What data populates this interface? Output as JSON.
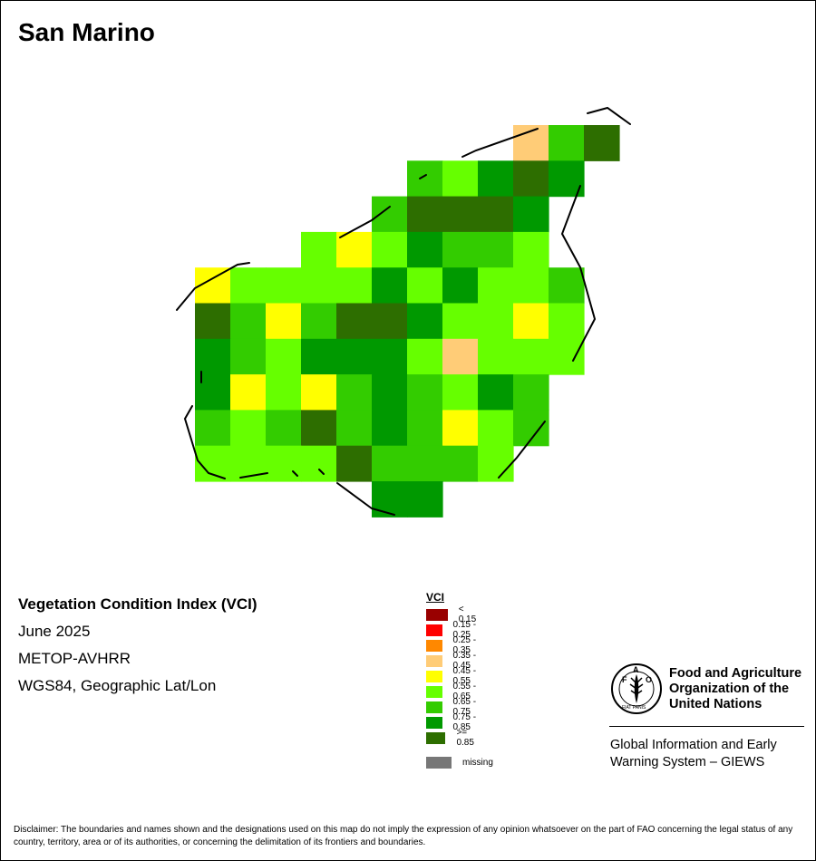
{
  "map_title": "San Marino",
  "info": {
    "index_name": "Vegetation Condition Index (VCI)",
    "period": "June 2025",
    "sensor": "METOP-AVHRR",
    "projection": "WGS84, Geographic Lat/Lon"
  },
  "legend": {
    "title": "VCI",
    "classes": [
      {
        "label": "< 0.15",
        "color": "#990000"
      },
      {
        "label": "0.15 - 0.25",
        "color": "#ff0000"
      },
      {
        "label": "0.25 - 0.35",
        "color": "#ff8800"
      },
      {
        "label": "0.35 - 0.45",
        "color": "#ffcc77"
      },
      {
        "label": "0.45 - 0.55",
        "color": "#ffff00"
      },
      {
        "label": "0.55 - 0.65",
        "color": "#66ff00"
      },
      {
        "label": "0.65 - 0.75",
        "color": "#33cc00"
      },
      {
        "label": "0.75 - 0.85",
        "color": "#009900"
      },
      {
        "label": ">= 0.85",
        "color": "#2d6e00"
      }
    ],
    "missing": {
      "label": "missing",
      "color": "#777777"
    }
  },
  "organization": {
    "logo_letters": "FAO",
    "logo_motto": "FIAT PANIS",
    "name_line1": "Food and Agriculture",
    "name_line2": "Organization of the",
    "name_line3": "United Nations",
    "system_line1": "Global Information and Early",
    "system_line2": "Warning System – GIEWS"
  },
  "disclaimer": "Disclaimer: The boundaries and names shown and the designations used on this map do not imply the expression of any opinion whatsoever on the part of FAO concerning the legal status of any country, territory, area or of its authorities, or concerning the delimitation of its frontiers and boundaries.",
  "vci_grid": [
    {
      "row": 0,
      "start_col": 9,
      "classes": [
        "0.35 - 0.45",
        "0.65 - 0.75",
        ">= 0.85"
      ]
    },
    {
      "row": 1,
      "start_col": 6,
      "classes": [
        "0.65 - 0.75",
        "0.55 - 0.65",
        "0.75 - 0.85",
        ">= 0.85",
        "0.75 - 0.85"
      ]
    },
    {
      "row": 2,
      "start_col": 5,
      "classes": [
        "0.65 - 0.75",
        ">= 0.85",
        ">= 0.85",
        ">= 0.85",
        "0.75 - 0.85"
      ]
    },
    {
      "row": 3,
      "start_col": 3,
      "classes": [
        "0.55 - 0.65",
        "0.45 - 0.55",
        "0.55 - 0.65",
        "0.75 - 0.85",
        "0.65 - 0.75",
        "0.65 - 0.75",
        "0.55 - 0.65"
      ]
    },
    {
      "row": 4,
      "start_col": 0,
      "classes": [
        "0.45 - 0.55",
        "0.55 - 0.65",
        "0.55 - 0.65",
        "0.55 - 0.65",
        "0.55 - 0.65",
        "0.75 - 0.85",
        "0.55 - 0.65",
        "0.75 - 0.85",
        "0.55 - 0.65",
        "0.55 - 0.65",
        "0.65 - 0.75"
      ]
    },
    {
      "row": 5,
      "start_col": 0,
      "classes": [
        ">= 0.85",
        "0.65 - 0.75",
        "0.45 - 0.55",
        "0.65 - 0.75",
        ">= 0.85",
        ">= 0.85",
        "0.75 - 0.85",
        "0.55 - 0.65",
        "0.55 - 0.65",
        "0.45 - 0.55",
        "0.55 - 0.65"
      ]
    },
    {
      "row": 6,
      "start_col": 0,
      "classes": [
        "0.75 - 0.85",
        "0.65 - 0.75",
        "0.55 - 0.65",
        "0.75 - 0.85",
        "0.75 - 0.85",
        "0.75 - 0.85",
        "0.55 - 0.65",
        "0.35 - 0.45",
        "0.55 - 0.65",
        "0.55 - 0.65",
        "0.55 - 0.65"
      ]
    },
    {
      "row": 7,
      "start_col": 0,
      "classes": [
        "0.75 - 0.85",
        "0.45 - 0.55",
        "0.55 - 0.65",
        "0.45 - 0.55",
        "0.65 - 0.75",
        "0.75 - 0.85",
        "0.65 - 0.75",
        "0.55 - 0.65",
        "0.75 - 0.85",
        "0.65 - 0.75"
      ]
    },
    {
      "row": 8,
      "start_col": 0,
      "classes": [
        "0.65 - 0.75",
        "0.55 - 0.65",
        "0.65 - 0.75",
        ">= 0.85",
        "0.65 - 0.75",
        "0.75 - 0.85",
        "0.65 - 0.75",
        "0.45 - 0.55",
        "0.55 - 0.65",
        "0.65 - 0.75"
      ]
    },
    {
      "row": 9,
      "start_col": 0,
      "classes": [
        "0.55 - 0.65",
        "0.55 - 0.65",
        "0.55 - 0.65",
        "0.55 - 0.65",
        ">= 0.85",
        "0.65 - 0.75",
        "0.65 - 0.75",
        "0.65 - 0.75",
        "0.55 - 0.65"
      ]
    },
    {
      "row": 10,
      "start_col": 5,
      "classes": [
        "0.75 - 0.85",
        "0.75 - 0.85"
      ]
    }
  ]
}
